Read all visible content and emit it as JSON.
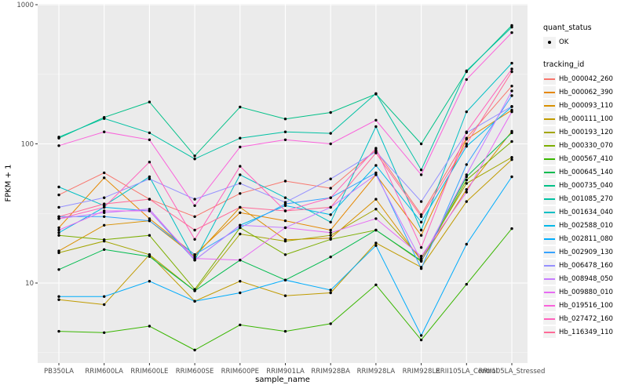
{
  "chart_data": {
    "type": "line",
    "title": "",
    "xlabel": "sample_name",
    "ylabel": "FPKM + 1",
    "y_scale": "log10",
    "ylim": [
      2.65,
      1014
    ],
    "y_ticks": [
      10,
      100,
      1000
    ],
    "y_tick_labels": [
      "10",
      "100",
      "1000"
    ],
    "y_minor_gridlines": [
      3.162,
      31.62,
      316.2
    ],
    "grid": "on",
    "legend_position": "right",
    "panel_bg": "#EBEBEB",
    "grid_color": "#FFFFFF",
    "point_color": "#000000",
    "axis_text_color": "#4D4D4D",
    "categories": [
      "PB350LA",
      "RRIM600LA",
      "RRIM600LE",
      "RRIM600SE",
      "RRIM600PE",
      "RRIM901LA",
      "RRIM928BA",
      "RRIM928LA",
      "RRIM928LE",
      "RRII105LA_Control",
      "RRII105LA_Stressed"
    ],
    "series": [
      {
        "name": "Hb_000042_260",
        "color": "#F8766D",
        "values": [
          43,
          62,
          40,
          30,
          44,
          54,
          48,
          90,
          31,
          110,
          260
        ]
      },
      {
        "name": "Hb_000062_390",
        "color": "#E58700",
        "values": [
          25,
          57,
          29,
          16,
          32,
          28,
          24,
          60,
          22,
          108,
          175
        ]
      },
      {
        "name": "Hb_000093_110",
        "color": "#D89000",
        "values": [
          17,
          26,
          28,
          15.5,
          35,
          20.5,
          21,
          40,
          14.5,
          47,
          123
        ]
      },
      {
        "name": "Hb_000111_100",
        "color": "#C09B00",
        "values": [
          7.6,
          7,
          16,
          7.4,
          10.3,
          8.1,
          8.5,
          19.4,
          13,
          38.5,
          77
        ]
      },
      {
        "name": "Hb_000193_120",
        "color": "#A3A500",
        "values": [
          16.5,
          20,
          16,
          8.8,
          22.5,
          20,
          22,
          34,
          15,
          52,
          80
        ]
      },
      {
        "name": "Hb_000330_070",
        "color": "#7CAE00",
        "values": [
          22,
          20.5,
          22,
          9,
          25,
          16,
          20.6,
          24,
          14.3,
          55,
          104
        ]
      },
      {
        "name": "Hb_000567_410",
        "color": "#39B600",
        "values": [
          4.5,
          4.4,
          4.9,
          3.3,
          5,
          4.5,
          5.1,
          9.7,
          3.9,
          9.8,
          24.6
        ]
      },
      {
        "name": "Hb_000645_140",
        "color": "#00BB4E",
        "values": [
          12.5,
          17.4,
          15.5,
          8.8,
          14.6,
          10.5,
          15.4,
          24,
          14.5,
          58,
          120
        ]
      },
      {
        "name": "Hb_000735_040",
        "color": "#00C087",
        "values": [
          110,
          155,
          200,
          82,
          184,
          151,
          168,
          228,
          100,
          330,
          710
        ]
      },
      {
        "name": "Hb_001085_270",
        "color": "#00C1A3",
        "values": [
          112,
          152,
          120,
          78,
          110,
          122,
          119,
          230,
          65,
          335,
          690
        ]
      },
      {
        "name": "Hb_001634_040",
        "color": "#00BFC4",
        "values": [
          49,
          36,
          58,
          14.6,
          60,
          41,
          27.4,
          133,
          24,
          170,
          380
        ]
      },
      {
        "name": "Hb_002588_010",
        "color": "#00B8E7",
        "values": [
          23,
          35,
          33,
          14.6,
          26,
          36,
          31,
          70,
          27.4,
          96,
          185
        ]
      },
      {
        "name": "Hb_002811_080",
        "color": "#00ACFC",
        "values": [
          8,
          8,
          10.3,
          7.4,
          8.5,
          10.5,
          8.9,
          18.6,
          4.2,
          19,
          58
        ]
      },
      {
        "name": "Hb_002909_130",
        "color": "#35A2FF",
        "values": [
          30,
          30,
          28,
          16,
          25,
          37,
          41,
          62,
          12.7,
          71,
          222
        ]
      },
      {
        "name": "Hb_006478_160",
        "color": "#9590FF",
        "values": [
          35,
          41,
          56,
          40,
          52,
          38,
          56,
          88,
          38.5,
          120,
          186
        ]
      },
      {
        "name": "Hb_008948_050",
        "color": "#C77CFF",
        "values": [
          29,
          32,
          34,
          14.6,
          26,
          25,
          35,
          60,
          14.5,
          60,
          240
        ]
      },
      {
        "name": "Hb_009880_010",
        "color": "#E76BF3",
        "values": [
          24,
          33,
          33,
          15,
          14.6,
          25,
          23,
          29,
          15.6,
          45,
          170
        ]
      },
      {
        "name": "Hb_019516_100",
        "color": "#FA62DB",
        "values": [
          97,
          122,
          107,
          36,
          95,
          107,
          100,
          148,
          60,
          290,
          630
        ]
      },
      {
        "name": "Hb_027472_160",
        "color": "#FF62BC",
        "values": [
          29,
          35,
          74,
          20.6,
          69,
          33,
          41,
          93,
          18,
          122,
          345
        ]
      },
      {
        "name": "Hb_116349_110",
        "color": "#FF6A98",
        "values": [
          30,
          37,
          40,
          24,
          35,
          33,
          35,
          86,
          30,
          100,
          330
        ]
      }
    ]
  },
  "legend": {
    "quant_status_title": "quant_status",
    "quant_status_items": [
      {
        "label": "OK",
        "symbol": "point"
      }
    ],
    "tracking_title": "tracking_id"
  }
}
